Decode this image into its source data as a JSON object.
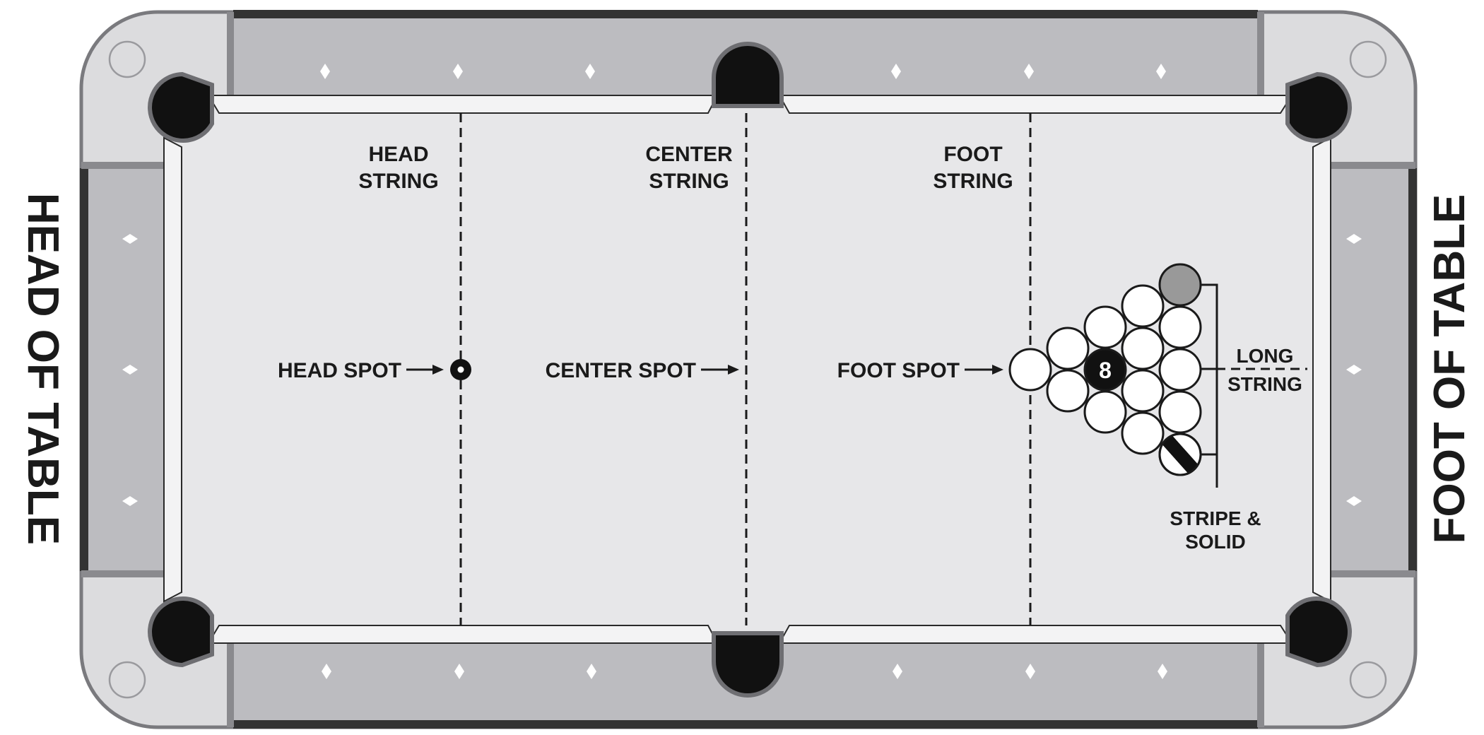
{
  "labels": {
    "head_string": [
      "HEAD",
      "STRING"
    ],
    "center_string": [
      "CENTER",
      "STRING"
    ],
    "foot_string": [
      "FOOT",
      "STRING"
    ],
    "head_spot": "HEAD SPOT",
    "center_spot": "CENTER SPOT",
    "foot_spot": "FOOT SPOT",
    "long_string": [
      "LONG",
      "STRING"
    ],
    "stripe_solid": [
      "STRIPE &",
      "SOLID"
    ],
    "head_of_table": "HEAD OF TABLE",
    "foot_of_table": "FOOT OF TABLE"
  },
  "balls": {
    "eight_ball_number": "8",
    "rack_rows": 5,
    "special": [
      "solid (gray)",
      "stripe",
      "8-ball"
    ]
  },
  "colors": {
    "felt": "#e7e7e9",
    "rail": "#bcbcc0",
    "corner": "#dcdcde",
    "pocket": "#111111",
    "rail_edge": "#333333"
  }
}
